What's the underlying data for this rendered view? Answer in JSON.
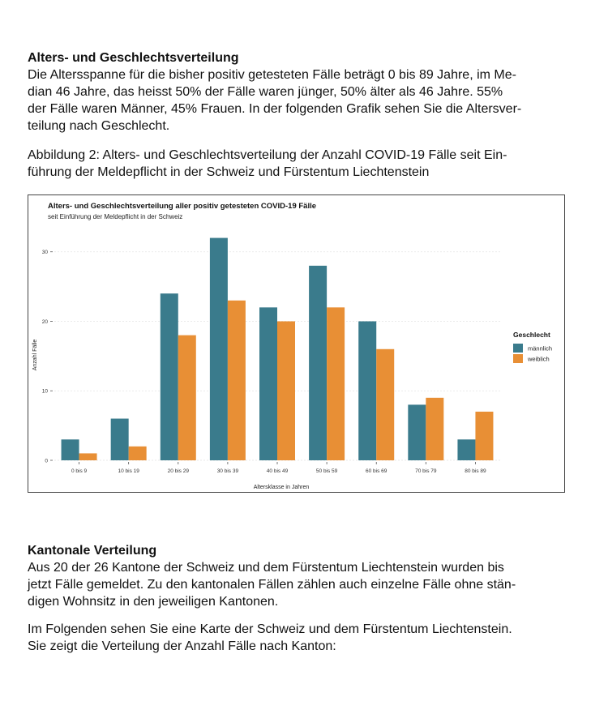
{
  "section1": {
    "heading": "Alters- und Geschlechtsverteilung",
    "lines": [
      "Die Altersspanne für die bisher positiv getesteten Fälle beträgt 0 bis 89 Jahre, im Me-",
      "dian 46 Jahre, das heisst 50% der Fälle waren jünger, 50% älter als 46 Jahre. 55%",
      "der Fälle waren Männer, 45% Frauen. In der folgenden Grafik sehen Sie die Altersver-",
      "teilung nach Geschlecht."
    ]
  },
  "figure_caption": {
    "lines": [
      "Abbildung 2: Alters- und Geschlechtsverteilung der Anzahl COVID-19 Fälle seit Ein-",
      "führung der Meldepflicht in der Schweiz und Fürstentum Liechtenstein"
    ]
  },
  "chart_data": {
    "type": "bar",
    "title": "Alters- und Geschlechtsverteilung aller positiv getesteten COVID-19 Fälle",
    "subtitle": "seit Einführung der Meldepflicht in der Schweiz",
    "xlabel": "Altersklasse in Jahren",
    "ylabel": "Anzahl Fälle",
    "categories": [
      "0 bis 9",
      "10 bis 19",
      "20 bis 29",
      "30 bis 39",
      "40 bis 49",
      "50 bis 59",
      "60 bis 69",
      "70 bis 79",
      "80 bis 89"
    ],
    "series": [
      {
        "name": "männlich",
        "color": "#3a7b8c",
        "values": [
          3,
          6,
          24,
          32,
          22,
          28,
          20,
          8,
          3
        ]
      },
      {
        "name": "weiblich",
        "color": "#e88f35",
        "values": [
          1,
          2,
          18,
          23,
          20,
          22,
          16,
          9,
          7
        ]
      }
    ],
    "yticks": [
      0,
      10,
      20,
      30
    ],
    "ylim": [
      0,
      33
    ],
    "grid": true,
    "legend_title": "Geschlecht",
    "legend_position": "right"
  },
  "section2": {
    "heading": "Kantonale Verteilung",
    "lines": [
      "Aus 20 der 26 Kantone der Schweiz und dem Fürstentum Liechtenstein wurden bis",
      "jetzt Fälle gemeldet. Zu den kantonalen Fällen zählen auch einzelne Fälle ohne stän-",
      "digen Wohnsitz in den jeweiligen Kantonen."
    ]
  },
  "section3": {
    "lines": [
      "Im Folgenden sehen Sie eine Karte der Schweiz und dem Fürstentum Liechtenstein.",
      "Sie zeigt die Verteilung der Anzahl Fälle nach Kanton:"
    ]
  }
}
